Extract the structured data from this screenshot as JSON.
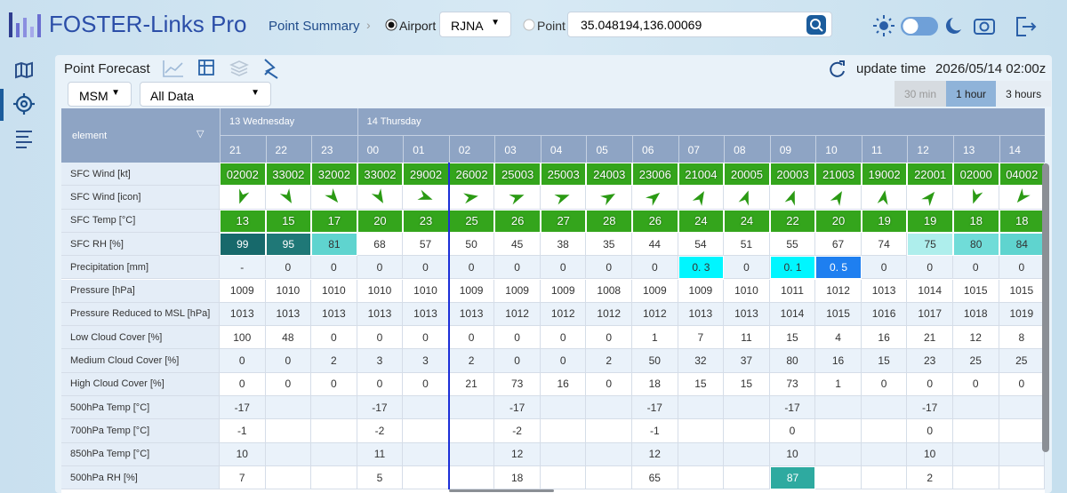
{
  "header": {
    "logo": "FOSTER-Links Pro",
    "breadcrumb": "Point Summary",
    "airport_label": "Airport",
    "airport": "RJNA",
    "point_label": "Point",
    "point": "35.048194,136.00069"
  },
  "panel": {
    "title": "Point Forecast",
    "update_label": "update time",
    "update_time": "2026/05/14 02:00z",
    "model": "MSM",
    "data_filter": "All Data",
    "intervals": [
      {
        "label": "30 min",
        "state": "disabled"
      },
      {
        "label": "1 hour",
        "state": "active"
      },
      {
        "label": "3 hours"
      }
    ]
  },
  "table": {
    "element_header": "element",
    "days": [
      {
        "label": "13 Wednesday",
        "hours": [
          "21",
          "22",
          "23"
        ]
      },
      {
        "label": "14 Thursday",
        "hours": [
          "00",
          "01",
          "02",
          "03",
          "04",
          "05",
          "06",
          "07",
          "08",
          "09",
          "10",
          "11",
          "12",
          "13",
          "14"
        ]
      }
    ],
    "rows": [
      {
        "label": "SFC Wind [kt]",
        "color": "#34a51c",
        "values": [
          "02002",
          "33002",
          "32002",
          "33002",
          "29002",
          "26002",
          "25003",
          "25003",
          "24003",
          "23006",
          "21004",
          "20005",
          "20003",
          "21003",
          "19002",
          "22001",
          "02000",
          "04002"
        ]
      },
      {
        "label": "SFC Wind [icon]"
      },
      {
        "label": "SFC Temp [°C]",
        "color": "#34a51c",
        "values": [
          13,
          15,
          17,
          20,
          23,
          25,
          26,
          27,
          28,
          26,
          24,
          24,
          22,
          20,
          19,
          19,
          18,
          18
        ]
      },
      {
        "label": "SFC RH [%]",
        "values": [
          99,
          95,
          81,
          68,
          57,
          50,
          45,
          38,
          35,
          44,
          54,
          51,
          55,
          67,
          74,
          75,
          80,
          84
        ],
        "colors": [
          "#17696b",
          "#1f7877",
          "#5fd4cf",
          null,
          null,
          null,
          null,
          null,
          null,
          null,
          null,
          null,
          null,
          null,
          null,
          "#aeeeec",
          "#70dcd8",
          "#5fd4cf"
        ]
      },
      {
        "label": "Precipitation [mm]",
        "values": [
          "-",
          0,
          0,
          0,
          0,
          0,
          0,
          0,
          0,
          0,
          "0. 3",
          0,
          "0. 1",
          "0. 5",
          0,
          0,
          0,
          0
        ],
        "colors": [
          null,
          null,
          null,
          null,
          null,
          null,
          null,
          null,
          null,
          null,
          "#00f6ff",
          null,
          "#00f6ff",
          "#1e7ff0",
          null,
          null,
          null,
          null
        ]
      },
      {
        "label": "Pressure [hPa]",
        "values": [
          1009,
          1010,
          1010,
          1010,
          1010,
          1009,
          1009,
          1009,
          1008,
          1009,
          1009,
          1010,
          1011,
          1012,
          1013,
          1014,
          1015,
          1015
        ]
      },
      {
        "label": "Pressure Reduced to MSL [hPa]",
        "values": [
          1013,
          1013,
          1013,
          1013,
          1013,
          1013,
          1012,
          1012,
          1012,
          1012,
          1013,
          1013,
          1014,
          1015,
          1016,
          1017,
          1018,
          1019
        ]
      },
      {
        "label": "Low Cloud Cover [%]",
        "values": [
          100,
          48,
          0,
          0,
          0,
          0,
          0,
          0,
          0,
          1,
          7,
          11,
          15,
          4,
          16,
          21,
          12,
          8
        ]
      },
      {
        "label": "Medium Cloud Cover [%]",
        "values": [
          0,
          0,
          2,
          3,
          3,
          2,
          0,
          0,
          2,
          50,
          32,
          37,
          80,
          16,
          15,
          23,
          25,
          25
        ]
      },
      {
        "label": "High Cloud Cover [%]",
        "values": [
          0,
          0,
          0,
          0,
          0,
          21,
          73,
          16,
          0,
          18,
          15,
          15,
          73,
          1,
          0,
          0,
          0,
          0
        ]
      },
      {
        "label": "500hPa Temp [°C]",
        "values": [
          -17,
          null,
          null,
          -17,
          null,
          null,
          -17,
          null,
          null,
          -17,
          null,
          null,
          -17,
          null,
          null,
          -17,
          null,
          null
        ]
      },
      {
        "label": "700hPa Temp [°C]",
        "values": [
          -1,
          null,
          null,
          -2,
          null,
          null,
          -2,
          null,
          null,
          -1,
          null,
          null,
          0,
          null,
          null,
          0,
          null,
          null
        ]
      },
      {
        "label": "850hPa Temp [°C]",
        "values": [
          10,
          null,
          null,
          11,
          null,
          null,
          12,
          null,
          null,
          12,
          null,
          null,
          10,
          null,
          null,
          10,
          null,
          null
        ]
      },
      {
        "label": "500hPa RH [%]",
        "values": [
          7,
          null,
          null,
          5,
          null,
          null,
          18,
          null,
          null,
          65,
          null,
          null,
          87,
          null,
          null,
          2,
          null,
          null
        ],
        "colors": [
          null,
          null,
          null,
          null,
          null,
          null,
          null,
          null,
          null,
          null,
          null,
          null,
          "#2eaaa0",
          null,
          null,
          null,
          null,
          null
        ]
      }
    ]
  }
}
